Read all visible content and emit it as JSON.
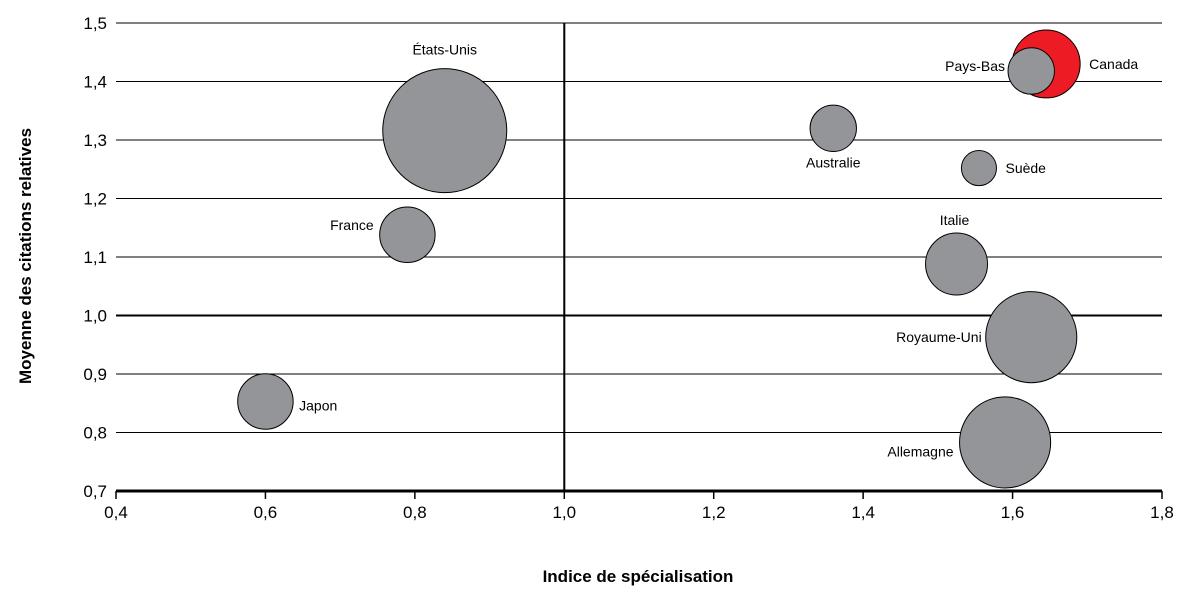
{
  "chart_data": {
    "type": "bubble",
    "xlabel": "Indice de spécialisation",
    "ylabel": "Moyenne des citations relatives",
    "xlim": [
      0.4,
      1.8
    ],
    "ylim": [
      0.7,
      1.5
    ],
    "x_ticks": [
      "0,4",
      "0,6",
      "0,8",
      "1,0",
      "1,2",
      "1,4",
      "1,6",
      "1,8"
    ],
    "y_ticks": [
      "0,7",
      "0,8",
      "0,9",
      "1,0",
      "1,1",
      "1,2",
      "1,3",
      "1,4",
      "1,5"
    ],
    "reference_lines": {
      "x": 1.0,
      "y": 1.0
    },
    "grid": "horizontal",
    "colors": {
      "default": "#939598",
      "highlight": "#ED1C24"
    },
    "points": [
      {
        "label": "États-Unis",
        "x": 0.84,
        "y": 1.316,
        "size": 100,
        "highlight": false
      },
      {
        "label": "Canada",
        "x": 1.645,
        "y": 1.43,
        "size": 30,
        "highlight": true
      },
      {
        "label": "Pays-Bas",
        "x": 1.625,
        "y": 1.418,
        "size": 14,
        "highlight": false
      },
      {
        "label": "Australie",
        "x": 1.36,
        "y": 1.32,
        "size": 14,
        "highlight": false
      },
      {
        "label": "Suède",
        "x": 1.555,
        "y": 1.252,
        "size": 8,
        "highlight": false
      },
      {
        "label": "France",
        "x": 0.79,
        "y": 1.138,
        "size": 20,
        "highlight": false
      },
      {
        "label": "Italie",
        "x": 1.525,
        "y": 1.088,
        "size": 25,
        "highlight": false
      },
      {
        "label": "Royaume-Uni",
        "x": 1.625,
        "y": 0.963,
        "size": 54,
        "highlight": false
      },
      {
        "label": "Japon",
        "x": 0.6,
        "y": 0.853,
        "size": 20,
        "highlight": false
      },
      {
        "label": "Allemagne",
        "x": 1.59,
        "y": 0.783,
        "size": 54,
        "highlight": false
      }
    ]
  }
}
